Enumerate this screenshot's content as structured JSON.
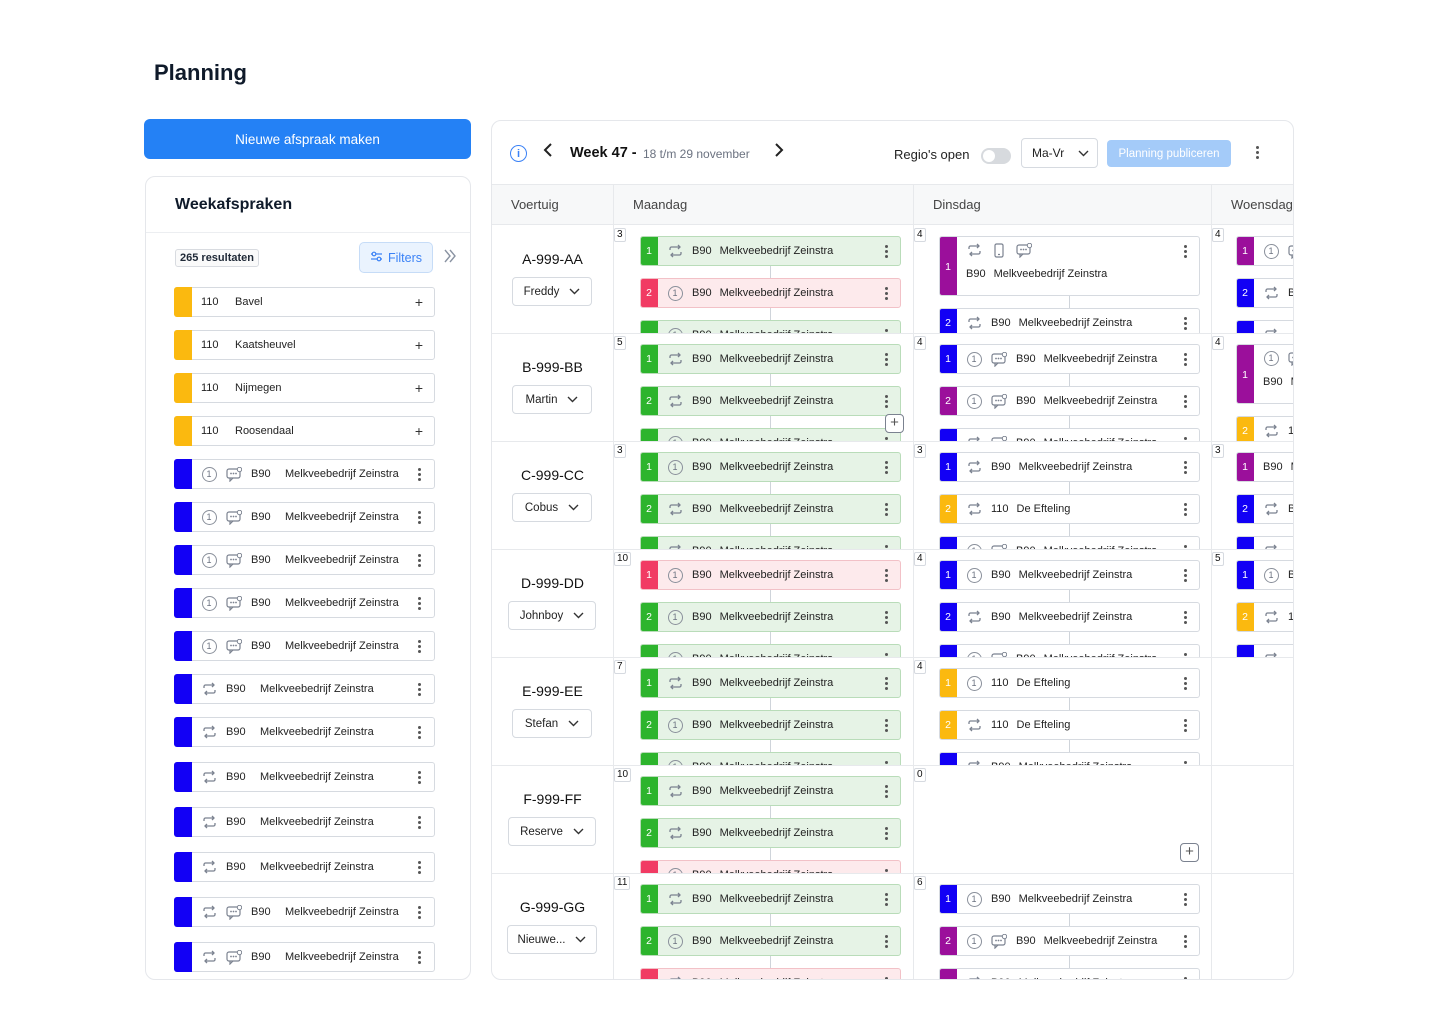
{
  "page": {
    "title": "Planning",
    "new_button": "Nieuwe afspraak maken"
  },
  "colors": {
    "green": "#2db42d",
    "red": "#f13b63",
    "purple": "#9b0f9b",
    "blue": "#1200f5",
    "yellow": "#fbb90f",
    "primary": "#2481f5"
  },
  "sidebar": {
    "title": "Weekafspraken",
    "results": "265 resultaten",
    "filters_label": "Filters",
    "items": [
      {
        "color": "#fbb90f",
        "code": "110",
        "text": "Bavel",
        "action": "+"
      },
      {
        "color": "#fbb90f",
        "code": "110",
        "text": "Kaatsheuvel",
        "action": "+"
      },
      {
        "color": "#fbb90f",
        "code": "110",
        "text": "Nijmegen",
        "action": "+"
      },
      {
        "color": "#fbb90f",
        "code": "110",
        "text": "Roosendaal",
        "action": "+"
      },
      {
        "color": "#1200f5",
        "icons": [
          "one",
          "chat"
        ],
        "code": "B90",
        "text": "Melkveebedrijf Zeinstra"
      },
      {
        "color": "#1200f5",
        "icons": [
          "one",
          "chat"
        ],
        "code": "B90",
        "text": "Melkveebedrijf Zeinstra"
      },
      {
        "color": "#1200f5",
        "icons": [
          "one",
          "chat"
        ],
        "code": "B90",
        "text": "Melkveebedrijf Zeinstra"
      },
      {
        "color": "#1200f5",
        "icons": [
          "one",
          "chat"
        ],
        "code": "B90",
        "text": "Melkveebedrijf Zeinstra"
      },
      {
        "color": "#1200f5",
        "icons": [
          "one",
          "chat"
        ],
        "code": "B90",
        "text": "Melkveebedrijf Zeinstra"
      },
      {
        "color": "#1200f5",
        "icons": [
          "repeat"
        ],
        "code": "B90",
        "text": "Melkveebedrijf Zeinstra"
      },
      {
        "color": "#1200f5",
        "icons": [
          "repeat"
        ],
        "code": "B90",
        "text": "Melkveebedrijf Zeinstra"
      },
      {
        "color": "#1200f5",
        "icons": [
          "repeat"
        ],
        "code": "B90",
        "text": "Melkveebedrijf Zeinstra"
      },
      {
        "color": "#1200f5",
        "icons": [
          "repeat"
        ],
        "code": "B90",
        "text": "Melkveebedrijf Zeinstra"
      },
      {
        "color": "#1200f5",
        "icons": [
          "repeat"
        ],
        "code": "B90",
        "text": "Melkveebedrijf Zeinstra"
      },
      {
        "color": "#1200f5",
        "icons": [
          "repeat",
          "chat"
        ],
        "code": "B90",
        "text": "Melkveebedrijf Zeinstra"
      },
      {
        "color": "#1200f5",
        "icons": [
          "repeat",
          "chat"
        ],
        "code": "B90",
        "text": "Melkveebedrijf Zeinstra"
      }
    ]
  },
  "toolbar": {
    "week": "Week 47 -",
    "range": "18 t/m 29 november",
    "regio_label": "Regio's open",
    "view_select": "Ma-Vr",
    "publish": "Planning publiceren"
  },
  "columns": {
    "vehicle": "Voertuig",
    "days": [
      "Maandag",
      "Dinsdag",
      "Woensdag"
    ]
  },
  "vehicles": [
    {
      "plate": "A-999-AA",
      "driver": "Freddy",
      "counts": [
        "3",
        "4",
        "4"
      ],
      "mon": [
        {
          "n": "1",
          "c": "green",
          "i": [
            "repeat"
          ],
          "code": "B90",
          "t": "Melkveebedrijf Zeinstra"
        },
        {
          "n": "2",
          "c": "red",
          "i": [
            "one"
          ],
          "code": "B90",
          "t": "Melkveebedrijf Zeinstra"
        },
        {
          "n": "",
          "c": "green",
          "i": [
            "one"
          ],
          "code": "B90",
          "t": "Melkveebedrijf Zeinstra"
        }
      ],
      "tue": [
        {
          "n": "1",
          "c": "purple",
          "i": [
            "repeat",
            "phone",
            "chat"
          ],
          "code": "B90",
          "t": "Melkveebedrijf Zeinstra",
          "tall": true
        },
        {
          "n": "2",
          "c": "blue",
          "i": [
            "repeat"
          ],
          "code": "B90",
          "t": "Melkveebedrijf Zeinstra"
        }
      ],
      "wed": [
        {
          "n": "1",
          "c": "purple",
          "i": [
            "one",
            "chat"
          ],
          "code": "",
          "t": ""
        },
        {
          "n": "2",
          "c": "blue",
          "i": [
            "repeat"
          ],
          "code": "B",
          "t": ""
        },
        {
          "n": "",
          "c": "blue",
          "i": [
            "repeat"
          ],
          "code": "",
          "t": ""
        }
      ]
    },
    {
      "plate": "B-999-BB",
      "driver": "Martin",
      "counts": [
        "5",
        "4",
        "4"
      ],
      "mon": [
        {
          "n": "1",
          "c": "green",
          "i": [
            "repeat"
          ],
          "code": "B90",
          "t": "Melkveebedrijf Zeinstra"
        },
        {
          "n": "2",
          "c": "green",
          "i": [
            "repeat"
          ],
          "code": "B90",
          "t": "Melkveebedrijf Zeinstra"
        },
        {
          "n": "",
          "c": "green",
          "i": [
            "one"
          ],
          "code": "B90",
          "t": "Melkveebedrijf Zeinstra"
        }
      ],
      "tue": [
        {
          "n": "1",
          "c": "blue",
          "i": [
            "one",
            "chat"
          ],
          "code": "B90",
          "t": "Melkveebedrijf Zeinstra"
        },
        {
          "n": "2",
          "c": "purple",
          "i": [
            "one",
            "chat"
          ],
          "code": "B90",
          "t": "Melkveebedrijf Zeinstra"
        },
        {
          "n": "",
          "c": "blue",
          "i": [
            "repeat",
            "chat"
          ],
          "code": "B90",
          "t": "Melkveebedrijf Zeinstra"
        }
      ],
      "wed": [
        {
          "n": "1",
          "c": "purple",
          "i": [
            "one",
            "chat"
          ],
          "code": "B90",
          "t": "M",
          "tall": true
        },
        {
          "n": "2",
          "c": "yellow",
          "i": [
            "repeat"
          ],
          "code": "1",
          "t": ""
        }
      ]
    },
    {
      "plate": "C-999-CC",
      "driver": "Cobus",
      "counts": [
        "3",
        "3",
        "3"
      ],
      "mon": [
        {
          "n": "1",
          "c": "green",
          "i": [
            "one"
          ],
          "code": "B90",
          "t": "Melkveebedrijf Zeinstra"
        },
        {
          "n": "2",
          "c": "green",
          "i": [
            "repeat"
          ],
          "code": "B90",
          "t": "Melkveebedrijf Zeinstra"
        },
        {
          "n": "",
          "c": "green",
          "i": [
            "repeat"
          ],
          "code": "B90",
          "t": "Melkveebedrijf Zeinstra"
        }
      ],
      "tue": [
        {
          "n": "1",
          "c": "blue",
          "i": [
            "repeat"
          ],
          "code": "B90",
          "t": "Melkveebedrijf Zeinstra"
        },
        {
          "n": "2",
          "c": "yellow",
          "i": [
            "repeat"
          ],
          "code": "110",
          "t": "De Efteling"
        },
        {
          "n": "",
          "c": "blue",
          "i": [
            "one",
            "chat"
          ],
          "code": "B90",
          "t": "Melkveebedrijf Zeinstra"
        }
      ],
      "wed": [
        {
          "n": "1",
          "c": "purple",
          "i": [],
          "code": "B90",
          "t": "M"
        },
        {
          "n": "2",
          "c": "blue",
          "i": [
            "repeat"
          ],
          "code": "B",
          "t": ""
        },
        {
          "n": "",
          "c": "blue",
          "i": [
            "repeat"
          ],
          "code": "",
          "t": ""
        }
      ]
    },
    {
      "plate": "D-999-DD",
      "driver": "Johnboy",
      "counts": [
        "10",
        "4",
        "5"
      ],
      "mon": [
        {
          "n": "1",
          "c": "red",
          "i": [
            "one"
          ],
          "code": "B90",
          "t": "Melkveebedrijf Zeinstra"
        },
        {
          "n": "2",
          "c": "green",
          "i": [
            "one"
          ],
          "code": "B90",
          "t": "Melkveebedrijf Zeinstra"
        },
        {
          "n": "",
          "c": "green",
          "i": [
            "one"
          ],
          "code": "B90",
          "t": "Melkveebedrijf Zeinstra"
        }
      ],
      "tue": [
        {
          "n": "1",
          "c": "blue",
          "i": [
            "one"
          ],
          "code": "B90",
          "t": "Melkveebedrijf Zeinstra"
        },
        {
          "n": "2",
          "c": "blue",
          "i": [
            "repeat"
          ],
          "code": "B90",
          "t": "Melkveebedrijf Zeinstra"
        },
        {
          "n": "",
          "c": "blue",
          "i": [
            "one",
            "chat"
          ],
          "code": "B90",
          "t": "Melkveebedrijf Zeinstra"
        }
      ],
      "wed": [
        {
          "n": "1",
          "c": "blue",
          "i": [
            "one"
          ],
          "code": "B",
          "t": ""
        },
        {
          "n": "2",
          "c": "yellow",
          "i": [
            "repeat"
          ],
          "code": "1",
          "t": ""
        },
        {
          "n": "",
          "c": "blue",
          "i": [
            "repeat"
          ],
          "code": "",
          "t": ""
        }
      ]
    },
    {
      "plate": "E-999-EE",
      "driver": "Stefan",
      "counts": [
        "7",
        "4",
        ""
      ],
      "mon": [
        {
          "n": "1",
          "c": "green",
          "i": [
            "repeat"
          ],
          "code": "B90",
          "t": "Melkveebedrijf Zeinstra"
        },
        {
          "n": "2",
          "c": "green",
          "i": [
            "one"
          ],
          "code": "B90",
          "t": "Melkveebedrijf Zeinstra"
        },
        {
          "n": "",
          "c": "green",
          "i": [
            "one"
          ],
          "code": "B90",
          "t": "Melkveebedrijf Zeinstra"
        }
      ],
      "tue": [
        {
          "n": "1",
          "c": "yellow",
          "i": [
            "one"
          ],
          "code": "110",
          "t": "De Efteling"
        },
        {
          "n": "2",
          "c": "yellow",
          "i": [
            "repeat"
          ],
          "code": "110",
          "t": "De Efteling"
        },
        {
          "n": "",
          "c": "blue",
          "i": [
            "repeat"
          ],
          "code": "B90",
          "t": "Melkveebedrijf Zeinstra"
        }
      ],
      "wed": []
    },
    {
      "plate": "F-999-FF",
      "driver": "Reserve",
      "counts": [
        "10",
        "0",
        ""
      ],
      "mon": [
        {
          "n": "1",
          "c": "green",
          "i": [
            "repeat"
          ],
          "code": "B90",
          "t": "Melkveebedrijf Zeinstra"
        },
        {
          "n": "2",
          "c": "green",
          "i": [
            "repeat"
          ],
          "code": "B90",
          "t": "Melkveebedrijf Zeinstra"
        },
        {
          "n": "",
          "c": "red",
          "i": [
            "one"
          ],
          "code": "B90",
          "t": "Melkveebedrijf Zeinstra"
        }
      ],
      "tue": [],
      "wed": []
    },
    {
      "plate": "G-999-GG",
      "driver": "Nieuwe...",
      "counts": [
        "11",
        "6",
        ""
      ],
      "mon": [
        {
          "n": "1",
          "c": "green",
          "i": [
            "repeat"
          ],
          "code": "B90",
          "t": "Melkveebedrijf Zeinstra"
        },
        {
          "n": "2",
          "c": "green",
          "i": [
            "one"
          ],
          "code": "B90",
          "t": "Melkveebedrijf Zeinstra"
        },
        {
          "n": "",
          "c": "red",
          "i": [
            "repeat"
          ],
          "code": "B90",
          "t": "Melkveebedrijf Zeinstra"
        }
      ],
      "tue": [
        {
          "n": "1",
          "c": "blue",
          "i": [
            "one"
          ],
          "code": "B90",
          "t": "Melkveebedrijf Zeinstra"
        },
        {
          "n": "2",
          "c": "purple",
          "i": [
            "one",
            "chat"
          ],
          "code": "B90",
          "t": "Melkveebedrijf Zeinstra"
        },
        {
          "n": "",
          "c": "purple",
          "i": [
            "repeat"
          ],
          "code": "B90",
          "t": "Melkveebedrijf Zeinstra"
        }
      ],
      "wed": []
    }
  ]
}
